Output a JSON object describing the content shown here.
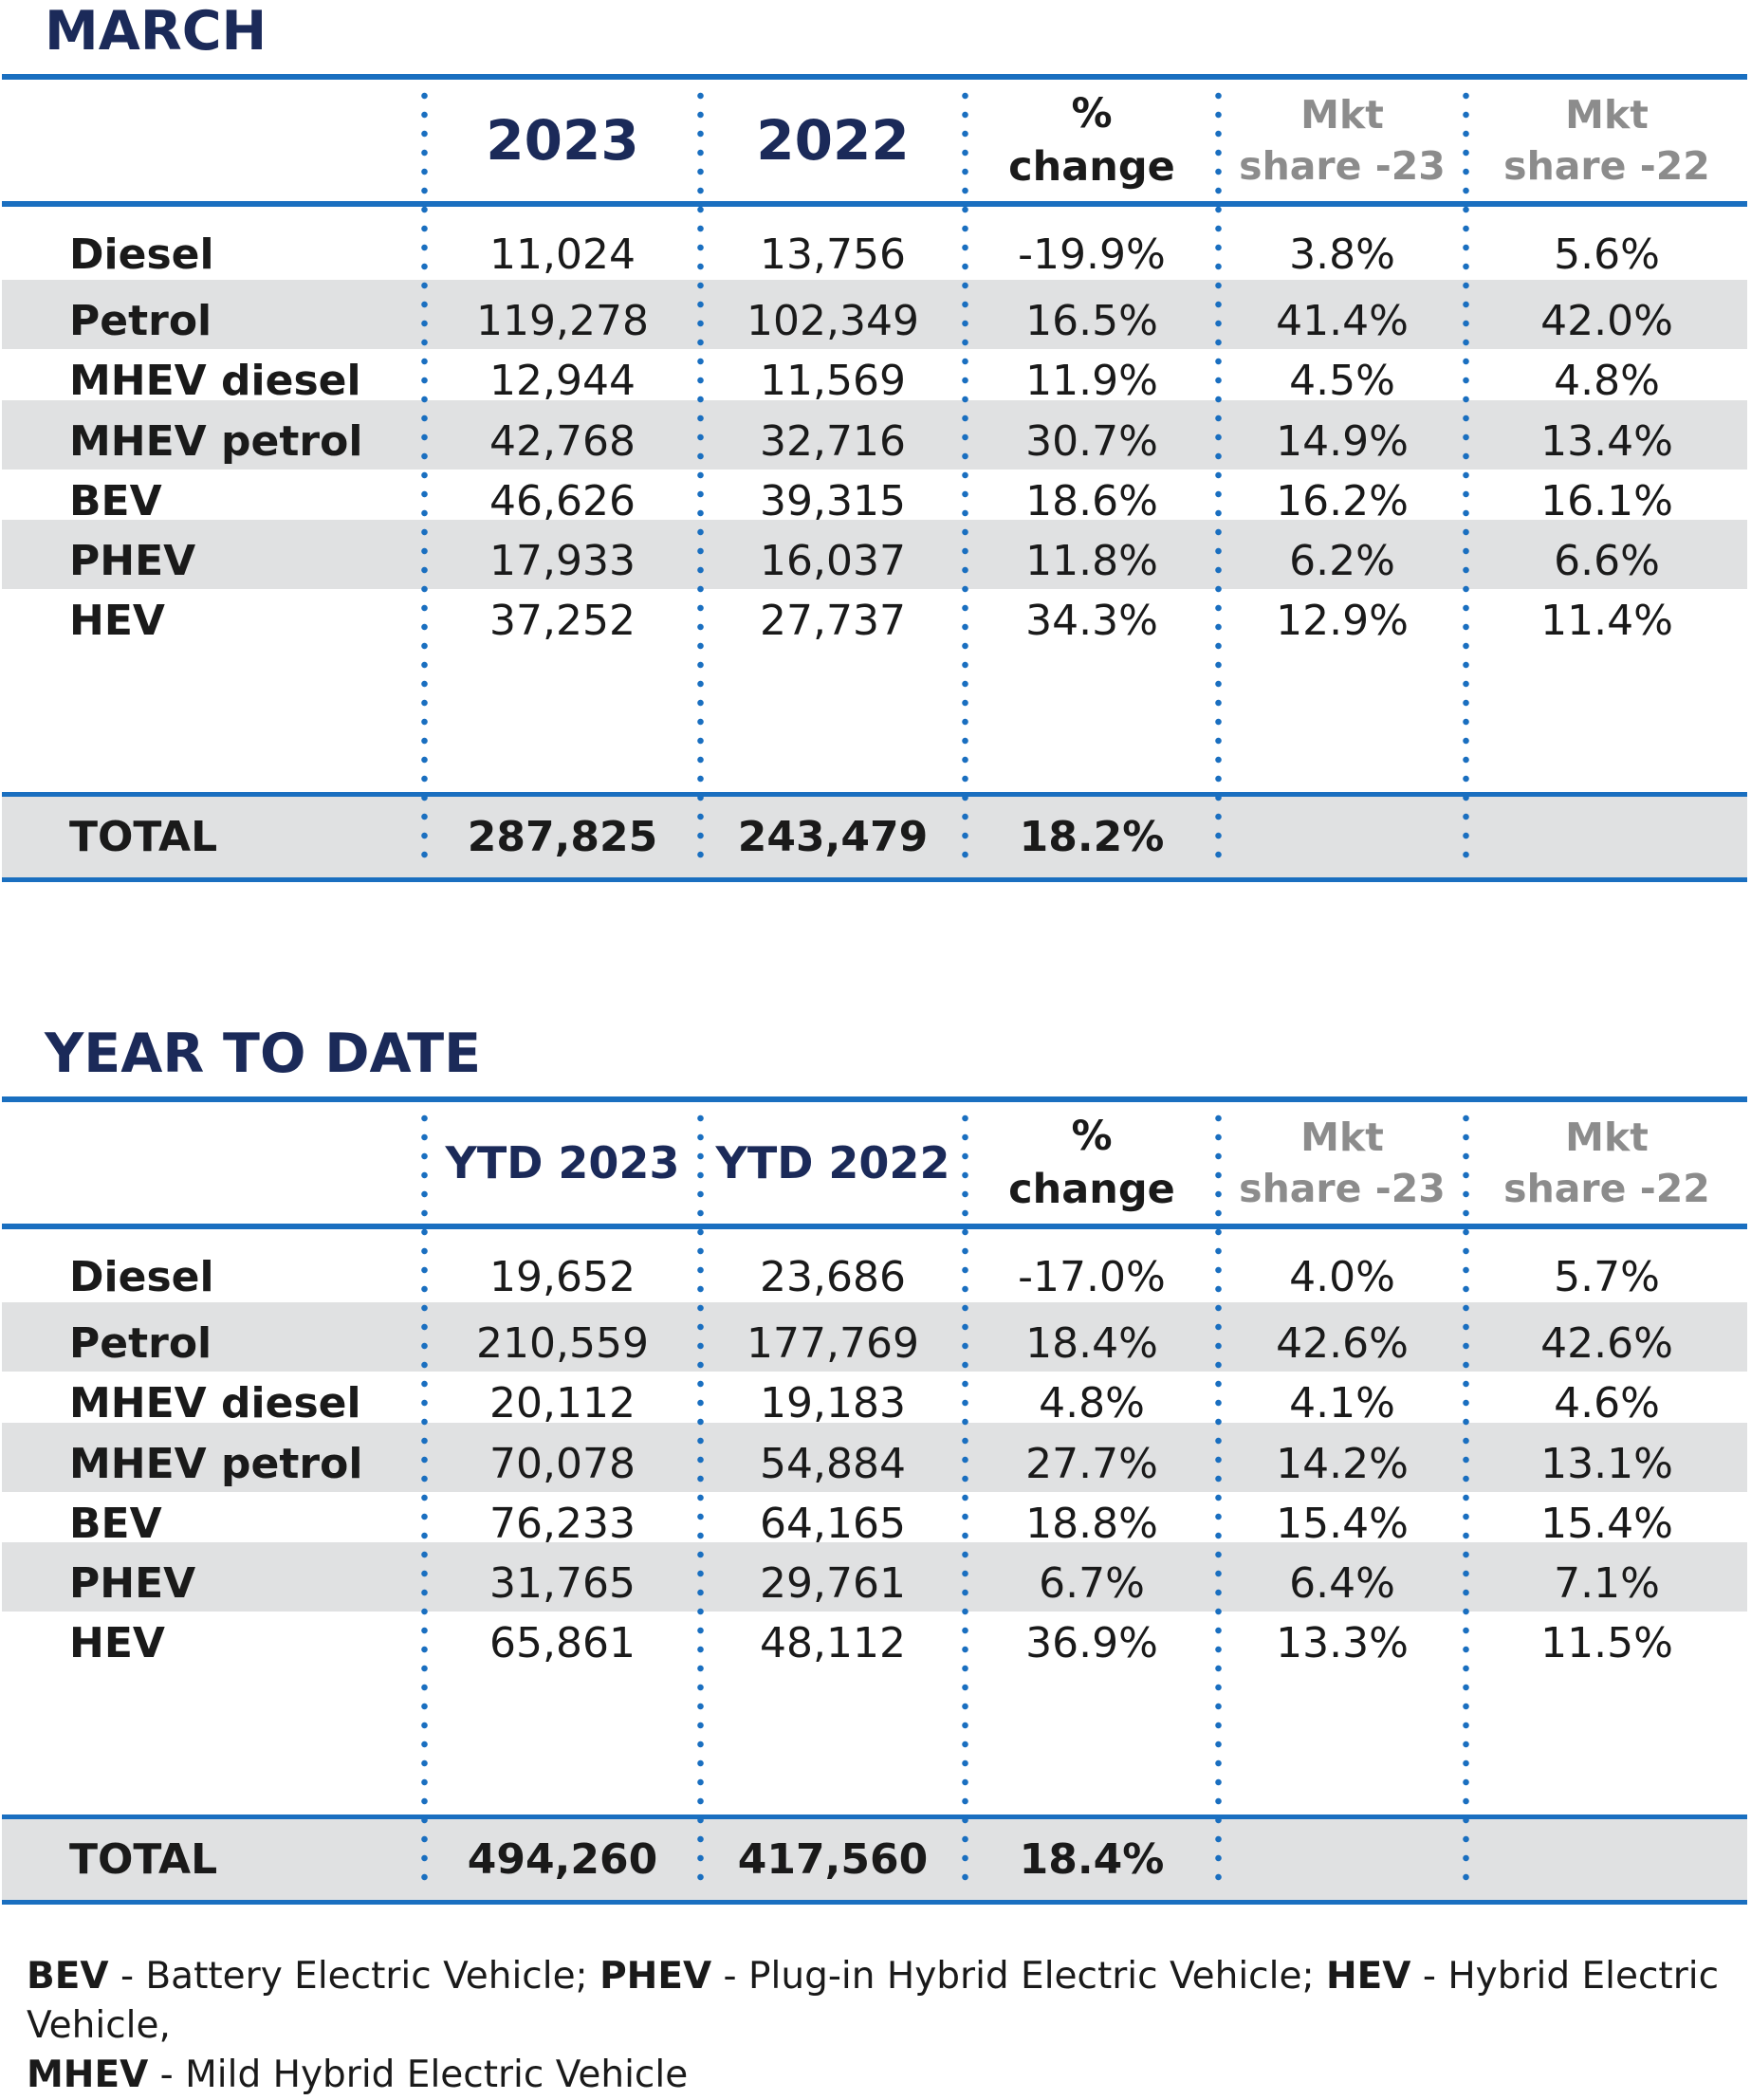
{
  "chart_data": [
    {
      "type": "table",
      "title": "MARCH",
      "columns": [
        "",
        "2023",
        "2022",
        "% change",
        "Mkt share -23",
        "Mkt share -22"
      ],
      "rows": [
        {
          "label": "Diesel",
          "values": [
            "11,024",
            "13,756",
            "-19.9%",
            "3.8%",
            "5.6%"
          ]
        },
        {
          "label": "Petrol",
          "values": [
            "119,278",
            "102,349",
            "16.5%",
            "41.4%",
            "42.0%"
          ]
        },
        {
          "label": "MHEV diesel",
          "values": [
            "12,944",
            "11,569",
            "11.9%",
            "4.5%",
            "4.8%"
          ]
        },
        {
          "label": "MHEV petrol",
          "values": [
            "42,768",
            "32,716",
            "30.7%",
            "14.9%",
            "13.4%"
          ]
        },
        {
          "label": "BEV",
          "values": [
            "46,626",
            "39,315",
            "18.6%",
            "16.2%",
            "16.1%"
          ]
        },
        {
          "label": "PHEV",
          "values": [
            "17,933",
            "16,037",
            "11.8%",
            "6.2%",
            "6.6%"
          ]
        },
        {
          "label": "HEV",
          "values": [
            "37,252",
            "27,737",
            "34.3%",
            "12.9%",
            "11.4%"
          ]
        }
      ],
      "total": {
        "label": "TOTAL",
        "values": [
          "287,825",
          "243,479",
          "18.2%",
          "",
          ""
        ]
      }
    },
    {
      "type": "table",
      "title": "YEAR TO DATE",
      "columns": [
        "",
        "YTD 2023",
        "YTD 2022",
        "% change",
        "Mkt share -23",
        "Mkt share -22"
      ],
      "rows": [
        {
          "label": "Diesel",
          "values": [
            "19,652",
            "23,686",
            "-17.0%",
            "4.0%",
            "5.7%"
          ]
        },
        {
          "label": "Petrol",
          "values": [
            "210,559",
            "177,769",
            "18.4%",
            "42.6%",
            "42.6%"
          ]
        },
        {
          "label": "MHEV diesel",
          "values": [
            "20,112",
            "19,183",
            "4.8%",
            "4.1%",
            "4.6%"
          ]
        },
        {
          "label": "MHEV petrol",
          "values": [
            "70,078",
            "54,884",
            "27.7%",
            "14.2%",
            "13.1%"
          ]
        },
        {
          "label": "BEV",
          "values": [
            "76,233",
            "64,165",
            "18.8%",
            "15.4%",
            "15.4%"
          ]
        },
        {
          "label": "PHEV",
          "values": [
            "31,765",
            "29,761",
            "6.7%",
            "6.4%",
            "7.1%"
          ]
        },
        {
          "label": "HEV",
          "values": [
            "65,861",
            "48,112",
            "36.9%",
            "13.3%",
            "11.5%"
          ]
        }
      ],
      "total": {
        "label": "TOTAL",
        "values": [
          "494,260",
          "417,560",
          "18.4%",
          "",
          ""
        ]
      }
    }
  ],
  "headers": {
    "march": {
      "c1": "2023",
      "c2": "2022",
      "c3_line1": "%",
      "c3_line2": "change",
      "c4_line1": "Mkt",
      "c4_line2": "share -23",
      "c5_line1": "Mkt",
      "c5_line2": "share -22"
    },
    "ytd": {
      "c1": "YTD 2023",
      "c2": "YTD 2022",
      "c3_line1": "%",
      "c3_line2": "change",
      "c4_line1": "Mkt",
      "c4_line2": "share -23",
      "c5_line1": "Mkt",
      "c5_line2": "share -22"
    }
  },
  "footnote": {
    "bev_abbr": "BEV",
    "bev_text": " - Battery Electric Vehicle; ",
    "phev_abbr": "PHEV",
    "phev_text": " - Plug-in Hybrid Electric Vehicle; ",
    "hev_abbr": "HEV",
    "hev_text": " - Hybrid Electric Vehicle,",
    "mhev_abbr": "MHEV",
    "mhev_text": " - Mild Hybrid Electric Vehicle"
  },
  "colors": {
    "title_navy": "#1b2a59",
    "rule_blue": "#1a6fc0",
    "band_grey": "#e0e1e2",
    "muted_header_grey": "#8c8c8c"
  }
}
